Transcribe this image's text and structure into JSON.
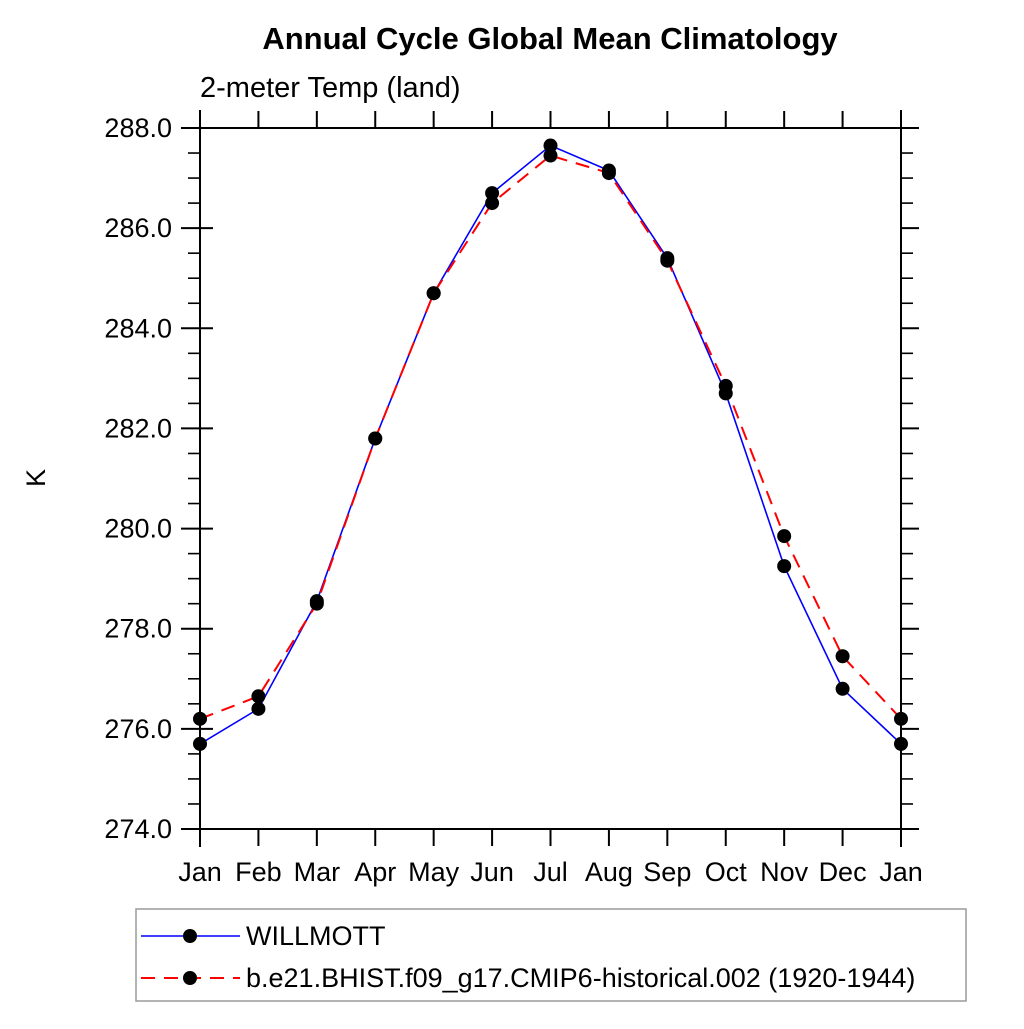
{
  "title": "Annual Cycle Global Mean Climatology",
  "subtitle": "2-meter Temp (land)",
  "ylabel": "K",
  "colors": {
    "axis": "#000000",
    "marker": "#000000",
    "obs_line": "#0000ff",
    "model_line": "#ff0000",
    "legend_border": "#9a9a9a",
    "background": "#ffffff"
  },
  "legend": {
    "items": [
      {
        "label": "WILLMOTT",
        "color": "#0000ff",
        "style": "solid"
      },
      {
        "label": "b.e21.BHIST.f09_g17.CMIP6-historical.002 (1920-1944)",
        "color": "#ff0000",
        "style": "dashed"
      }
    ]
  },
  "chart_data": {
    "type": "line",
    "title": "Annual Cycle Global Mean Climatology",
    "subtitle": "2-meter Temp (land)",
    "xlabel": "",
    "ylabel": "K",
    "categories": [
      "Jan",
      "Feb",
      "Mar",
      "Apr",
      "May",
      "Jun",
      "Jul",
      "Aug",
      "Sep",
      "Oct",
      "Nov",
      "Dec",
      "Jan"
    ],
    "series": [
      {
        "name": "WILLMOTT",
        "color": "#0000ff",
        "line_style": "solid",
        "marker": "filled-circle",
        "values": [
          275.7,
          276.4,
          278.55,
          281.8,
          284.7,
          286.7,
          287.65,
          287.15,
          285.4,
          282.7,
          279.25,
          276.8,
          275.7
        ]
      },
      {
        "name": "b.e21.BHIST.f09_g17.CMIP6-historical.002 (1920-1944)",
        "color": "#ff0000",
        "line_style": "dashed",
        "marker": "filled-circle",
        "values": [
          276.2,
          276.65,
          278.5,
          281.8,
          284.7,
          286.5,
          287.45,
          287.1,
          285.35,
          282.85,
          279.85,
          277.45,
          276.2
        ]
      }
    ],
    "ylim": [
      274.0,
      288.0
    ],
    "ytick_labels": [
      "274.0",
      "276.0",
      "278.0",
      "280.0",
      "282.0",
      "284.0",
      "286.0",
      "288.0"
    ],
    "ytick_major_step": 2.0,
    "ytick_minor_step": 0.5,
    "grid": false,
    "legend_position": "bottom-left",
    "marker_color": "#000000"
  }
}
